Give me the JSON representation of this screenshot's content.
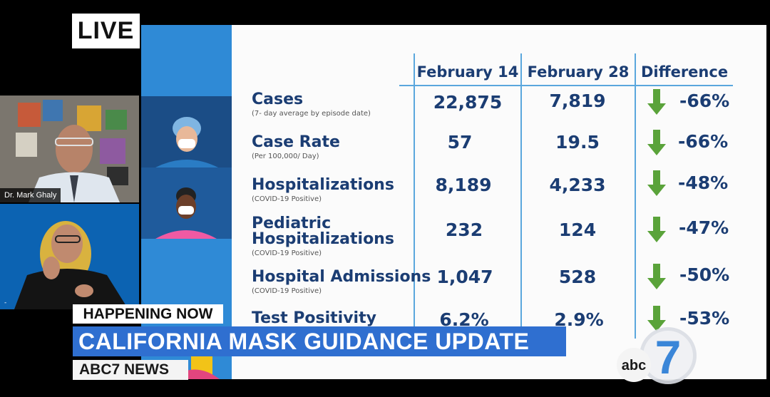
{
  "live_badge": "LIVE",
  "speakers": [
    {
      "name": "Dr. Mark Ghaly"
    }
  ],
  "slide": {
    "columns": [
      "February 14",
      "February 28",
      "Difference"
    ],
    "rows": [
      {
        "label": "Cases",
        "sub": "(7- day average by episode date)",
        "feb14": "22,875",
        "feb28": "7,819",
        "difference": "-66%"
      },
      {
        "label": "Case Rate",
        "sub": "(Per 100,000/ Day)",
        "feb14": "57",
        "feb28": "19.5",
        "difference": "-66%"
      },
      {
        "label": "Hospitalizations",
        "sub": "(COVID-19 Positive)",
        "feb14": "8,189",
        "feb28": "4,233",
        "difference": "-48%"
      },
      {
        "label": "Pediatric Hospitalizations",
        "label_line1": "Pediatric",
        "label_line2": "Hospitalizations",
        "sub": "(COVID-19 Positive)",
        "feb14": "232",
        "feb28": "124",
        "difference": "-47%"
      },
      {
        "label": "Hospital Admissions",
        "sub": "(COVID-19 Positive)",
        "feb14": "1,047",
        "feb28": "528",
        "difference": "-50%"
      },
      {
        "label": "Test Positivity",
        "sub": "",
        "feb14": "6.2%",
        "feb28": "2.9%",
        "difference": "-53%"
      }
    ],
    "arrow_color": "#5aa33a",
    "text_color": "#1b3d73"
  },
  "lower_third": {
    "tag": "HAPPENING NOW",
    "headline": "CALIFORNIA MASK GUIDANCE UPDATE",
    "network": "ABC7 NEWS"
  },
  "logo": {
    "text": "abc",
    "number": "7"
  }
}
